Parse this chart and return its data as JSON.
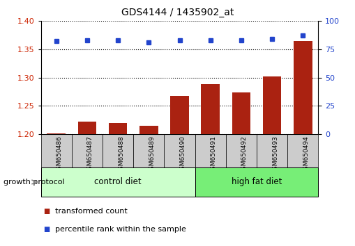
{
  "title": "GDS4144 / 1435902_at",
  "samples": [
    "GSM650486",
    "GSM650487",
    "GSM650488",
    "GSM650489",
    "GSM650490",
    "GSM650491",
    "GSM650492",
    "GSM650493",
    "GSM650494"
  ],
  "transformed_count": [
    1.201,
    1.222,
    1.219,
    1.215,
    1.268,
    1.288,
    1.274,
    1.302,
    1.365
  ],
  "percentile_rank": [
    82,
    83,
    83,
    81,
    83,
    83,
    83,
    84,
    87
  ],
  "ylim_left": [
    1.2,
    1.4
  ],
  "ylim_right": [
    0,
    100
  ],
  "yticks_left": [
    1.2,
    1.25,
    1.3,
    1.35,
    1.4
  ],
  "yticks_right": [
    0,
    25,
    50,
    75,
    100
  ],
  "bar_color": "#aa2211",
  "dot_color": "#2244cc",
  "control_label": "control diet",
  "high_fat_label": "high fat diet",
  "growth_protocol_label": "growth protocol",
  "legend_bar_label": "transformed count",
  "legend_dot_label": "percentile rank within the sample",
  "control_bg": "#ccffcc",
  "high_fat_bg": "#77ee77",
  "sample_bg": "#cccccc",
  "title_fontsize": 10,
  "tick_fontsize": 8,
  "label_fontsize": 8.5
}
